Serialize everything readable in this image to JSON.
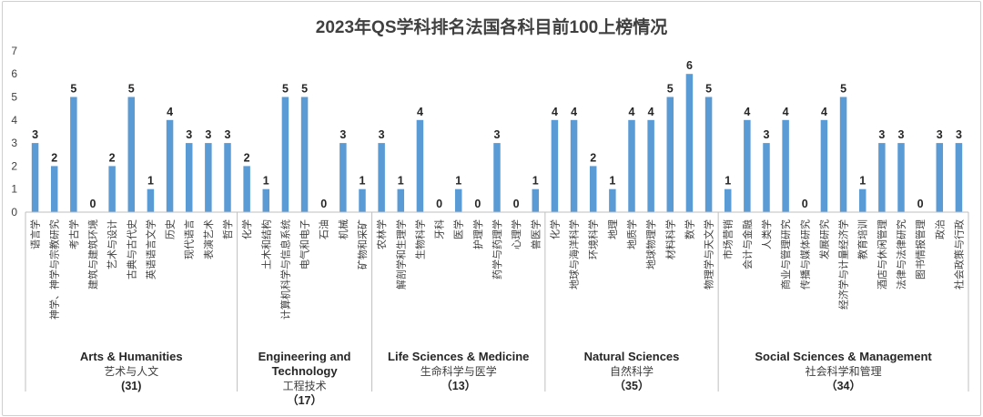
{
  "chart_data": {
    "type": "bar",
    "title": "2023年QS学科排名法国各科目前100上榜情况",
    "ylim": [
      0,
      7
    ],
    "yticks": [
      0,
      1,
      2,
      3,
      4,
      5,
      6,
      7
    ],
    "bar_color": "#5b9bd5",
    "gridlines": false,
    "data_labels": true,
    "categories": [
      "语言学",
      "神学、神学与宗教研究",
      "考古学",
      "建筑与建筑环境",
      "艺术与设计",
      "古典与古代史",
      "英语语言文学",
      "历史",
      "现代语言",
      "表演艺术",
      "哲学",
      "化学",
      "土木和结构",
      "计算机科学与信息系统",
      "电气和电子",
      "石油",
      "机械",
      "矿物和采矿",
      "农林学",
      "解剖学和生理学",
      "生物科学",
      "牙科",
      "医学",
      "护理学",
      "药学与药理学",
      "心理学",
      "兽医学",
      "化学",
      "地球与海洋科学",
      "环境科学",
      "地理",
      "地质学",
      "地球物理学",
      "材料科学",
      "数学",
      "物理学与天文学",
      "市场营销",
      "会计与金融",
      "人类学",
      "商业与管理研究",
      "传播与媒体研究",
      "发展研究",
      "经济学与计量经济学",
      "教育培训",
      "酒店与休闲管理",
      "法律与法律研究",
      "图书情报管理",
      "政治",
      "社会政策与行政"
    ],
    "values": [
      3,
      2,
      5,
      0,
      2,
      5,
      1,
      4,
      3,
      3,
      3,
      2,
      1,
      5,
      5,
      0,
      3,
      1,
      3,
      1,
      4,
      0,
      1,
      0,
      3,
      0,
      1,
      4,
      4,
      2,
      1,
      4,
      4,
      5,
      6,
      5,
      1,
      4,
      3,
      4,
      0,
      4,
      5,
      1,
      3,
      3,
      0,
      3,
      3
    ],
    "groups": [
      {
        "name": "Arts & Humanities",
        "name_lines": [
          "Arts & Humanities"
        ],
        "zh": "艺术与人文",
        "count": "(31)",
        "start": 0,
        "end": 10
      },
      {
        "name": "Engineering and Technology",
        "name_lines": [
          "Engineering and",
          "Technology"
        ],
        "zh": "工程技术",
        "count": "（17）",
        "start": 11,
        "end": 17
      },
      {
        "name": "Life Sciences & Medicine",
        "name_lines": [
          "Life Sciences & Medicine"
        ],
        "zh": "生命科学与医学",
        "count": "（13）",
        "start": 18,
        "end": 26
      },
      {
        "name": "Natural Sciences",
        "name_lines": [
          "Natural Sciences"
        ],
        "zh": "自然科学",
        "count": "（35）",
        "start": 27,
        "end": 35
      },
      {
        "name": "Social Sciences & Management",
        "name_lines": [
          "Social Sciences & Management"
        ],
        "zh": "社会科学和管理",
        "count": "（34）",
        "start": 36,
        "end": 48
      }
    ]
  }
}
